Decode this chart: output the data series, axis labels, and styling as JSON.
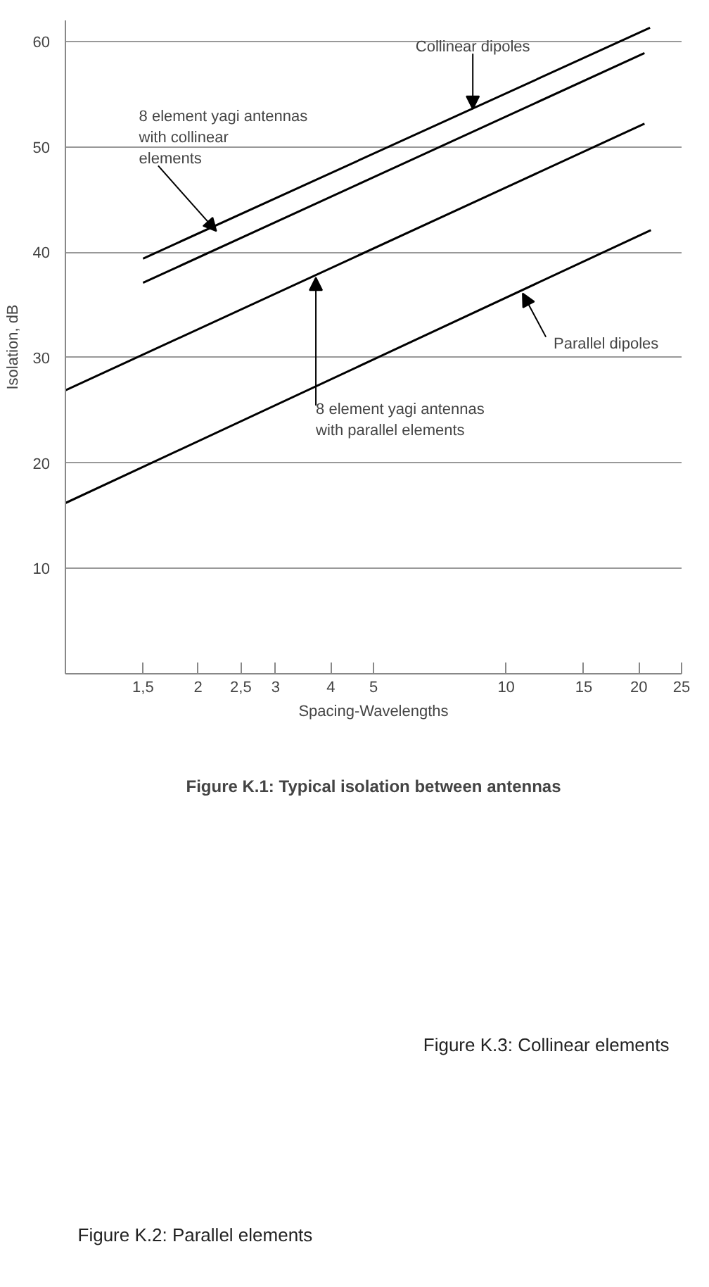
{
  "chart_data": {
    "type": "line",
    "title": "Figure K.1: Typical isolation between antennas",
    "xlabel": "Spacing-Wavelengths",
    "ylabel": "Isolation, dB",
    "log": "x",
    "xlim": [
      1,
      25
    ],
    "ylim": [
      0,
      62
    ],
    "xticks": [
      {
        "value": 1.5,
        "label": "1,5"
      },
      2,
      {
        "value": 2.5,
        "label": "2,5"
      },
      3,
      4,
      5,
      10,
      15,
      20,
      25
    ],
    "yticks": [
      10,
      20,
      30,
      40,
      50,
      60
    ],
    "grid": "y",
    "marker": "none",
    "line_style": "solid",
    "series": [
      {
        "color": "#000000",
        "x": [
          1.5,
          21.2
        ],
        "values": [
          39.4,
          61.3
        ]
      },
      {
        "color": "#000000",
        "x": [
          1.5,
          20.6
        ],
        "values": [
          37.1,
          58.9
        ]
      },
      {
        "color": "#000000",
        "x": [
          1,
          20.6
        ],
        "values": [
          26.9,
          52.2
        ]
      },
      {
        "color": "#000000",
        "x": [
          1,
          21.3
        ],
        "values": [
          16.2,
          42.1
        ]
      }
    ],
    "annotations": [
      {
        "text": "Collinear dipoles",
        "x": 8.4,
        "y": 53.6
      },
      {
        "text": "8 element yagi antennas\nwith collinear\nelements",
        "x": 2.2,
        "y": 42.0
      },
      {
        "text": "8 element yagi antennas\nwith parallel elements",
        "x": 3.7,
        "y": 37.6
      },
      {
        "text": "Parallel dipoles",
        "x": 10.9,
        "y": 36.1
      },
      "Figure K.3: Collinear elements",
      "Figure K.2: Parallel elements"
    ]
  }
}
